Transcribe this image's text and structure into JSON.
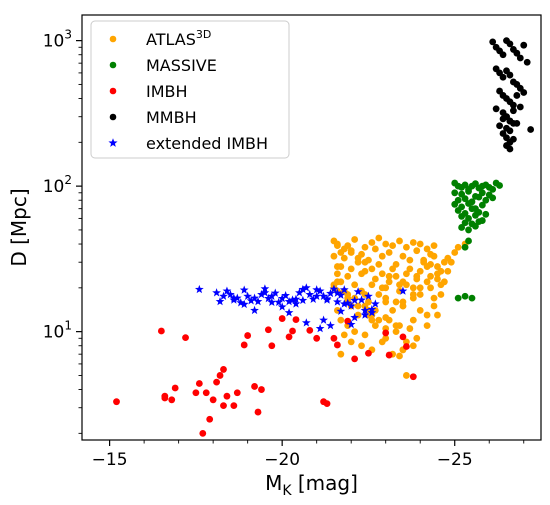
{
  "chart_data": {
    "type": "scatter",
    "xlabel": "M",
    "xlabel_sub": "K",
    "xlabel_unit": " [mag]",
    "ylabel": "D [Mpc]",
    "x_axis_inverted": true,
    "xlim": [
      -14.2,
      -27.5
    ],
    "y_scale": "log",
    "ylim": [
      1.8,
      1500
    ],
    "x_ticks": [
      -15,
      -20,
      -25
    ],
    "x_tick_labels": [
      "−15",
      "−20",
      "−25"
    ],
    "y_ticks": [
      10,
      100,
      1000
    ],
    "y_tick_base": "10",
    "y_tick_exponents": [
      "1",
      "2",
      "3"
    ],
    "legend_position": "top-left",
    "legend_base": "ATLAS",
    "legend_sup": "3D",
    "series": [
      {
        "name": "ATLAS3D",
        "color": "#ffa500",
        "marker": "circle",
        "x": [
          -21.5,
          -21.6,
          -21.9,
          -22.1,
          -22.4,
          -22.6,
          -22.8,
          -23.0,
          -23.2,
          -23.4,
          -23.6,
          -23.8,
          -24.0,
          -24.2,
          -24.4,
          -21.7,
          -22.0,
          -22.3,
          -22.7,
          -23.1,
          -23.5,
          -23.9,
          -24.3,
          -21.8,
          -22.2,
          -22.5,
          -22.9,
          -23.3,
          -23.7,
          -24.1,
          -21.6,
          -22.0,
          -22.4,
          -22.8,
          -23.2,
          -23.6,
          -24.0,
          -21.9,
          -22.3,
          -22.7,
          -23.1,
          -23.5,
          -23.9,
          -21.7,
          -22.1,
          -22.6,
          -23.0,
          -23.4,
          -23.8,
          -24.2,
          -21.5,
          -21.6,
          -21.7,
          -21.5,
          -21.6,
          -21.8,
          -21.9,
          -22.1,
          -22.3,
          -22.5,
          -22.8,
          -23.0,
          -23.3,
          -23.5,
          -23.8,
          -24.0,
          -24.3,
          -24.5,
          -24.6,
          -24.7,
          -24.4,
          -24.2,
          -23.9,
          -23.6,
          -23.4,
          -23.1,
          -22.9,
          -22.6,
          -22.4,
          -22.2,
          -22.0,
          -21.8,
          -21.6,
          -22.0,
          -22.5,
          -23.0,
          -23.5,
          -24.0,
          -24.4,
          -24.6,
          -24.5,
          -24.3,
          -24.1,
          -23.7,
          -23.3,
          -22.9,
          -22.4,
          -21.9,
          -21.6,
          -21.7,
          -21.9,
          -22.2,
          -22.6,
          -23.0,
          -23.4,
          -23.8,
          -24.2,
          -24.4,
          -24.6,
          -24.7,
          -24.8,
          -24.9,
          -25.0,
          -25.1,
          -25.3,
          -24.8,
          -24.5,
          -24.3,
          -24.0,
          -23.8,
          -23.5,
          -23.2,
          -22.8,
          -22.5,
          -22.2,
          -21.9,
          -21.6,
          -21.5,
          -22.1,
          -22.4,
          -22.7,
          -23.0,
          -23.3,
          -23.6,
          -23.9,
          -24.2,
          -24.5,
          -22.3,
          -22.6,
          -22.9,
          -23.2,
          -23.5,
          -23.8,
          -21.8,
          -22.0,
          -21.7,
          -22.6,
          -22.7,
          -23.1,
          -23.3,
          -23.5,
          -23.6,
          -23.7,
          -23.4,
          -23.0,
          -22.4
        ],
        "y": [
          42,
          40,
          39,
          43,
          38,
          41,
          44,
          40,
          39,
          42,
          38,
          41,
          40,
          37,
          39,
          35,
          36,
          34,
          37,
          35,
          33,
          36,
          34,
          32,
          30,
          31,
          33,
          29,
          31,
          30,
          28,
          27,
          26,
          29,
          27,
          25,
          26,
          24,
          25,
          23,
          24,
          22,
          23,
          22,
          21,
          21,
          20,
          21,
          20,
          22,
          33,
          25,
          28,
          20,
          22,
          19,
          18,
          17,
          19,
          16,
          18,
          17,
          16,
          15,
          17,
          18,
          20,
          23,
          26,
          30,
          33,
          28,
          24,
          21,
          19,
          22,
          25,
          27,
          30,
          32,
          35,
          37,
          39,
          15,
          14,
          16,
          15,
          14,
          17,
          21,
          25,
          29,
          31,
          27,
          24,
          20,
          18,
          16,
          14,
          12,
          11,
          13,
          12,
          10.5,
          11,
          12,
          13,
          15,
          18,
          22,
          26,
          30,
          35,
          38,
          40,
          32,
          28,
          24,
          20,
          18,
          16,
          14,
          12,
          13,
          15,
          17,
          19,
          21,
          10,
          9.5,
          11,
          9,
          10,
          8.5,
          9,
          11,
          13,
          8,
          7.5,
          8.5,
          7,
          7.5,
          8,
          9.5,
          8.5,
          7,
          13,
          14,
          12,
          11,
          7.5,
          5,
          10.5,
          6.8,
          12.5,
          15
        ]
      },
      {
        "name": "MASSIVE",
        "color": "#008000",
        "marker": "circle",
        "x": [
          -25.0,
          -25.1,
          -25.2,
          -25.3,
          -25.4,
          -25.5,
          -25.6,
          -25.7,
          -25.8,
          -25.9,
          -26.0,
          -26.1,
          -26.2,
          -26.3,
          -25.0,
          -25.2,
          -25.4,
          -25.6,
          -25.8,
          -26.0,
          -25.1,
          -25.3,
          -25.5,
          -25.7,
          -25.9,
          -26.1,
          -25.0,
          -25.2,
          -25.4,
          -25.6,
          -25.8,
          -25.1,
          -25.3,
          -25.5,
          -25.7,
          -25.9,
          -25.2,
          -25.4,
          -25.6,
          -25.8,
          -25.3,
          -25.5,
          -25.7,
          -25.2,
          -25.4,
          -25.6,
          -25.4,
          -25.3,
          -25.1,
          -25.3,
          -25.5
        ],
        "y": [
          105,
          100,
          98,
          102,
          95,
          100,
          104,
          97,
          100,
          102,
          98,
          95,
          105,
          101,
          90,
          88,
          92,
          85,
          90,
          87,
          80,
          82,
          78,
          84,
          80,
          83,
          75,
          72,
          76,
          70,
          74,
          68,
          65,
          70,
          66,
          64,
          62,
          60,
          63,
          58,
          56,
          55,
          57,
          52,
          50,
          53,
          42,
          38,
          17,
          17.5,
          17
        ]
      },
      {
        "name": "IMBH",
        "color": "#ff0000",
        "marker": "circle",
        "x": [
          -15.2,
          -16.5,
          -16.6,
          -16.8,
          -16.9,
          -17.2,
          -17.5,
          -17.6,
          -17.7,
          -17.9,
          -18.0,
          -18.1,
          -18.2,
          -18.3,
          -18.4,
          -18.6,
          -18.7,
          -18.9,
          -19.0,
          -19.2,
          -19.3,
          -19.4,
          -19.6,
          -19.7,
          -20.0,
          -20.2,
          -20.3,
          -20.4,
          -20.8,
          -21.0,
          -21.2,
          -21.3,
          -21.5,
          -21.6,
          -21.9,
          -22.1,
          -22.5,
          -23.0,
          -23.1,
          -23.5,
          -23.6,
          -23.8,
          -16.6,
          -17.8,
          -18.3
        ],
        "y": [
          3.3,
          10.1,
          3.6,
          3.4,
          4.1,
          9.1,
          3.8,
          4.4,
          2.0,
          2.5,
          3.4,
          4.5,
          5.0,
          5.5,
          3.6,
          3.1,
          3.8,
          8.1,
          9.4,
          4.2,
          2.8,
          4.0,
          10.3,
          8.0,
          12.3,
          9.2,
          10.1,
          12.1,
          10.2,
          9.0,
          3.3,
          3.2,
          9.0,
          8.1,
          11.8,
          6.5,
          7.1,
          9.8,
          6.9,
          9.2,
          7.9,
          4.9,
          3.5,
          3.8,
          3.1
        ]
      },
      {
        "name": "MMBH",
        "color": "#000000",
        "marker": "circle",
        "x": [
          -26.1,
          -26.2,
          -26.3,
          -26.4,
          -26.5,
          -26.6,
          -26.7,
          -26.8,
          -26.9,
          -27.0,
          -27.1,
          -26.2,
          -26.3,
          -26.4,
          -26.5,
          -26.6,
          -26.7,
          -26.8,
          -26.9,
          -27.0,
          -26.3,
          -26.4,
          -26.5,
          -26.6,
          -26.7,
          -26.8,
          -26.2,
          -26.4,
          -26.5,
          -26.6,
          -26.7,
          -26.9,
          -26.3,
          -26.5,
          -26.6,
          -26.8,
          -26.4,
          -26.5,
          -26.6,
          -26.7,
          -26.5,
          -26.6,
          -27.2,
          -26.4,
          -26.5,
          -26.6,
          -26.7
        ],
        "y": [
          980,
          900,
          850,
          800,
          1000,
          950,
          870,
          820,
          760,
          930,
          710,
          640,
          600,
          560,
          620,
          580,
          520,
          500,
          470,
          440,
          450,
          420,
          400,
          380,
          360,
          420,
          340,
          320,
          300,
          280,
          330,
          350,
          260,
          250,
          240,
          270,
          230,
          215,
          200,
          210,
          190,
          180,
          245,
          290,
          300,
          280,
          270
        ]
      },
      {
        "name": "extended IMBH",
        "color": "#0000ff",
        "marker": "star",
        "x": [
          -17.6,
          -18.1,
          -18.3,
          -18.4,
          -18.5,
          -18.6,
          -18.7,
          -18.8,
          -18.9,
          -19.0,
          -19.1,
          -19.2,
          -19.3,
          -19.4,
          -19.5,
          -19.6,
          -19.7,
          -19.8,
          -19.9,
          -20.0,
          -20.1,
          -20.2,
          -20.3,
          -20.4,
          -20.5,
          -20.6,
          -20.7,
          -20.8,
          -20.9,
          -21.0,
          -21.1,
          -21.2,
          -21.3,
          -21.4,
          -21.5,
          -21.6,
          -21.7,
          -21.8,
          -21.9,
          -22.0,
          -22.1,
          -22.2,
          -22.3,
          -22.4,
          -22.5,
          -22.6,
          -22.7,
          -23.5,
          -18.2,
          -18.9,
          -19.5,
          -20.0,
          -20.2,
          -20.6,
          -21.1,
          -21.4,
          -21.8,
          -22.1,
          -22.4,
          -21.2,
          -20.7,
          -21.7,
          -22.0,
          -22.6,
          -21.3,
          -21.6,
          -20.4,
          -19.2,
          -18.6,
          -19.7,
          -21.0
        ],
        "y": [
          19.5,
          18.5,
          17.5,
          19.0,
          18.0,
          16.5,
          17.0,
          15.8,
          19.3,
          17.5,
          16.3,
          17.0,
          16.1,
          18.0,
          19.7,
          16.9,
          17.5,
          18.4,
          15.9,
          16.9,
          17.7,
          16.1,
          16.5,
          15.5,
          18.5,
          19.5,
          20.0,
          18.0,
          16.7,
          17.5,
          19.0,
          17.5,
          16.5,
          18.3,
          19.6,
          16.0,
          17.8,
          19.4,
          15.7,
          15.0,
          16.4,
          18.8,
          16.5,
          14.0,
          17.5,
          13.5,
          15.5,
          19.0,
          16.1,
          15.4,
          18.5,
          14.8,
          13.5,
          16.4,
          10.5,
          11.0,
          15.5,
          12.5,
          13.0,
          12.0,
          11.5,
          13.8,
          11.2,
          14.2,
          16.8,
          18.4,
          16.7,
          14.0,
          17.0,
          15.9,
          19.4
        ]
      }
    ]
  }
}
